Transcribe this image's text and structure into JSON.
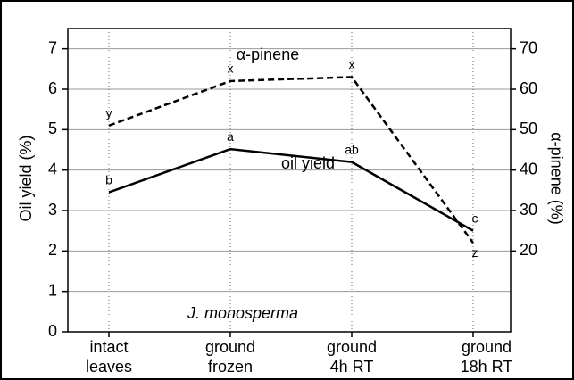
{
  "chart_data": {
    "type": "line",
    "categories": [
      [
        "intact",
        "leaves"
      ],
      [
        "ground",
        "frozen"
      ],
      [
        "ground",
        "4h RT"
      ],
      [
        "ground",
        "18h RT"
      ]
    ],
    "series": [
      {
        "name": "oil yield",
        "color": "#000000",
        "dash": false,
        "values": [
          3.45,
          4.52,
          4.2,
          2.5
        ],
        "letters": [
          "b",
          "a",
          "ab",
          "c"
        ]
      },
      {
        "name": "α-pinene",
        "color": "#000000",
        "dash": true,
        "axis": "y2",
        "values": [
          51,
          62,
          63,
          22
        ],
        "letters": [
          "y",
          "x",
          "x",
          "z"
        ]
      }
    ],
    "ylabel": "Oil yield (%)",
    "y2label": "α-pinene (%)",
    "ylim": [
      0,
      7.5
    ],
    "yticks": [
      0,
      1,
      2,
      3,
      4,
      5,
      6,
      7
    ],
    "y2lim": [
      0,
      75
    ],
    "y2ticks": [
      20,
      30,
      40,
      50,
      60,
      70
    ],
    "annotations": [
      "J. monosperma"
    ],
    "grid": true
  }
}
